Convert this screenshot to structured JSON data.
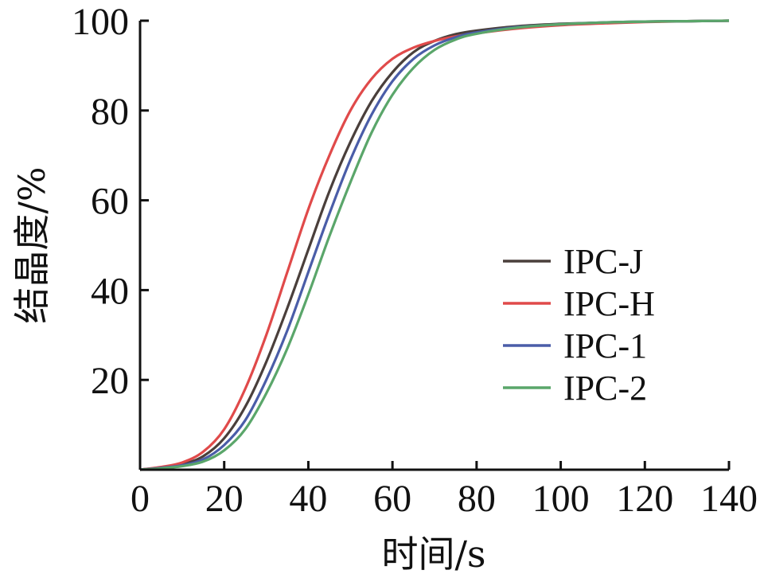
{
  "chart_data": {
    "type": "line",
    "title": "",
    "xlabel": "时间/s",
    "ylabel": "结晶度/%",
    "xlim": [
      0,
      140
    ],
    "ylim": [
      0,
      100
    ],
    "xticks": [
      0,
      20,
      40,
      60,
      80,
      100,
      120,
      140
    ],
    "yticks": [
      20,
      40,
      60,
      80,
      100
    ],
    "grid": false,
    "legend": {
      "position": "right-center"
    },
    "x": [
      0,
      5,
      10,
      15,
      20,
      25,
      30,
      35,
      40,
      45,
      50,
      55,
      60,
      65,
      70,
      75,
      80,
      90,
      100,
      110,
      120,
      130,
      140
    ],
    "series": [
      {
        "name": "IPC-J",
        "color": "#4a3f3b",
        "values": [
          0,
          0.5,
          1.2,
          3,
          7,
          14,
          24,
          36,
          49,
          62,
          73,
          82,
          88.5,
          93,
          95.5,
          97,
          97.8,
          98.8,
          99.3,
          99.6,
          99.8,
          99.9,
          100
        ]
      },
      {
        "name": "IPC-H",
        "color": "#e04a4a",
        "values": [
          0,
          0.6,
          1.6,
          4,
          9,
          18,
          30,
          44,
          58,
          70,
          80,
          87,
          91.5,
          94,
          95.5,
          96.5,
          97.2,
          98.3,
          99,
          99.4,
          99.7,
          99.9,
          100
        ]
      },
      {
        "name": "IPC-1",
        "color": "#4a5da8",
        "values": [
          0,
          0.4,
          1,
          2.3,
          5.5,
          11,
          20,
          31,
          44,
          57,
          69,
          79,
          86.5,
          91.5,
          94.5,
          96.3,
          97.4,
          98.6,
          99.2,
          99.6,
          99.8,
          99.9,
          100
        ]
      },
      {
        "name": "IPC-2",
        "color": "#5aa66a",
        "values": [
          0,
          0.3,
          0.8,
          1.8,
          4.3,
          9,
          17,
          27,
          39,
          52,
          64,
          75,
          83.5,
          89.5,
          93.5,
          95.8,
          97.1,
          98.5,
          99.2,
          99.6,
          99.8,
          99.9,
          100
        ]
      }
    ]
  }
}
